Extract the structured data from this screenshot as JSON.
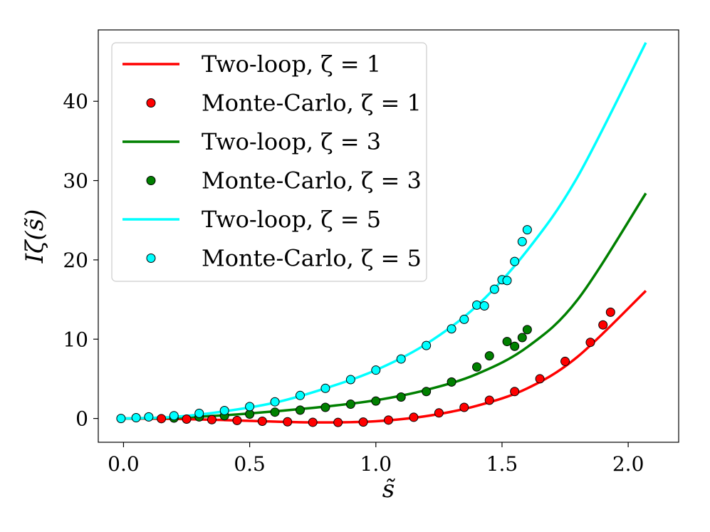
{
  "chart_data": {
    "type": "line",
    "title": "",
    "xlabel": "s̃",
    "ylabel": "Iζ(s̃)",
    "xlim": [
      -0.1,
      2.2
    ],
    "ylim": [
      -3,
      49
    ],
    "xticks": [
      0.0,
      0.5,
      1.0,
      1.5,
      2.0
    ],
    "xtick_labels": [
      "0.0",
      "0.5",
      "1.0",
      "1.5",
      "2.0"
    ],
    "yticks": [
      0,
      10,
      20,
      30,
      40
    ],
    "ytick_labels": [
      "0",
      "10",
      "20",
      "30",
      "40"
    ],
    "legend_position": "upper-left",
    "series": [
      {
        "name": "Two-loop, ζ = 1",
        "kind": "line",
        "color": "#ff0000",
        "x": [
          0.0,
          0.2,
          0.4,
          0.6,
          0.8,
          1.0,
          1.2,
          1.4,
          1.6,
          1.8,
          2.07
        ],
        "y": [
          0.0,
          -0.05,
          -0.2,
          -0.4,
          -0.5,
          -0.35,
          0.3,
          1.6,
          3.8,
          7.8,
          16.1
        ]
      },
      {
        "name": "Monte-Carlo, ζ = 1",
        "kind": "scatter",
        "color": "#ff0000",
        "x": [
          0.15,
          0.25,
          0.35,
          0.45,
          0.55,
          0.65,
          0.75,
          0.85,
          0.95,
          1.05,
          1.15,
          1.25,
          1.35,
          1.45,
          1.55,
          1.65,
          1.75,
          1.85,
          1.9,
          1.93
        ],
        "y": [
          -0.02,
          -0.08,
          -0.15,
          -0.25,
          -0.35,
          -0.42,
          -0.48,
          -0.5,
          -0.45,
          -0.2,
          0.15,
          0.7,
          1.4,
          2.3,
          3.4,
          5.0,
          7.2,
          9.6,
          11.8,
          13.4
        ]
      },
      {
        "name": "Two-loop, ζ = 3",
        "kind": "line",
        "color": "#008000",
        "x": [
          0.0,
          0.2,
          0.4,
          0.6,
          0.8,
          1.0,
          1.2,
          1.4,
          1.6,
          1.8,
          2.07
        ],
        "y": [
          0.0,
          0.1,
          0.4,
          0.9,
          1.5,
          2.3,
          3.6,
          5.6,
          9.0,
          15.0,
          28.4
        ]
      },
      {
        "name": "Monte-Carlo, ζ = 3",
        "kind": "scatter",
        "color": "#008000",
        "x": [
          0.2,
          0.3,
          0.4,
          0.5,
          0.6,
          0.7,
          0.8,
          0.9,
          1.0,
          1.1,
          1.2,
          1.3,
          1.4,
          1.45,
          1.52,
          1.55,
          1.58,
          1.6
        ],
        "y": [
          0.05,
          0.2,
          0.35,
          0.55,
          0.8,
          1.05,
          1.4,
          1.8,
          2.2,
          2.7,
          3.4,
          4.6,
          6.5,
          7.9,
          9.7,
          9.1,
          10.2,
          11.2
        ]
      },
      {
        "name": "Two-loop, ζ = 5",
        "kind": "line",
        "color": "#00ffff",
        "x": [
          0.0,
          0.2,
          0.4,
          0.6,
          0.8,
          1.0,
          1.2,
          1.4,
          1.6,
          1.8,
          2.07
        ],
        "y": [
          0.0,
          0.2,
          0.9,
          2.0,
          3.8,
          6.1,
          9.4,
          14.2,
          21.2,
          30.5,
          47.4
        ]
      },
      {
        "name": "Monte-Carlo, ζ = 5",
        "kind": "scatter",
        "color": "#00ffff",
        "x": [
          -0.01,
          0.05,
          0.1,
          0.2,
          0.3,
          0.4,
          0.5,
          0.6,
          0.7,
          0.8,
          0.9,
          1.0,
          1.1,
          1.2,
          1.3,
          1.35,
          1.4,
          1.43,
          1.47,
          1.5,
          1.52,
          1.55,
          1.58,
          1.6
        ],
        "y": [
          0.0,
          0.1,
          0.2,
          0.35,
          0.65,
          1.0,
          1.5,
          2.1,
          2.9,
          3.8,
          4.9,
          6.1,
          7.5,
          9.2,
          11.3,
          12.5,
          14.3,
          14.2,
          16.3,
          17.5,
          17.4,
          19.8,
          22.3,
          23.8
        ]
      }
    ]
  }
}
